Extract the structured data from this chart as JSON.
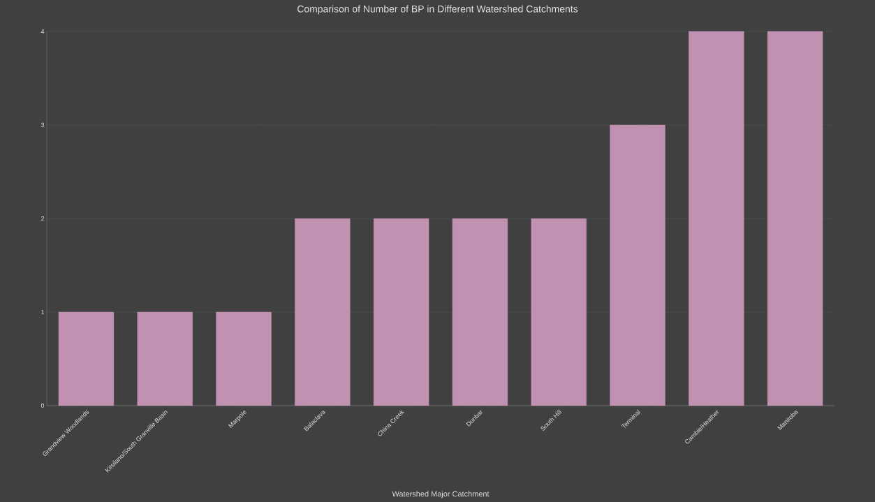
{
  "chart_data": {
    "type": "bar",
    "title": "Comparison of Number of BP in Different Watershed Catchments",
    "xlabel": "Watershed Major Catchment",
    "categories": [
      "Grandview Woodlands",
      "Kitsilano/South Granville Basin",
      "Marpole",
      "Balaclava",
      "China Creek",
      "Dunbar",
      "South Hill",
      "Terminal",
      "Cambie/Heather",
      "Manitoba"
    ],
    "values": [
      1,
      1,
      1,
      2,
      2,
      2,
      2,
      3,
      4,
      4
    ],
    "color": "#c191b1",
    "ylim": [
      0,
      4
    ],
    "yticks": [
      0,
      1,
      2,
      3,
      4
    ],
    "grid": "y"
  }
}
